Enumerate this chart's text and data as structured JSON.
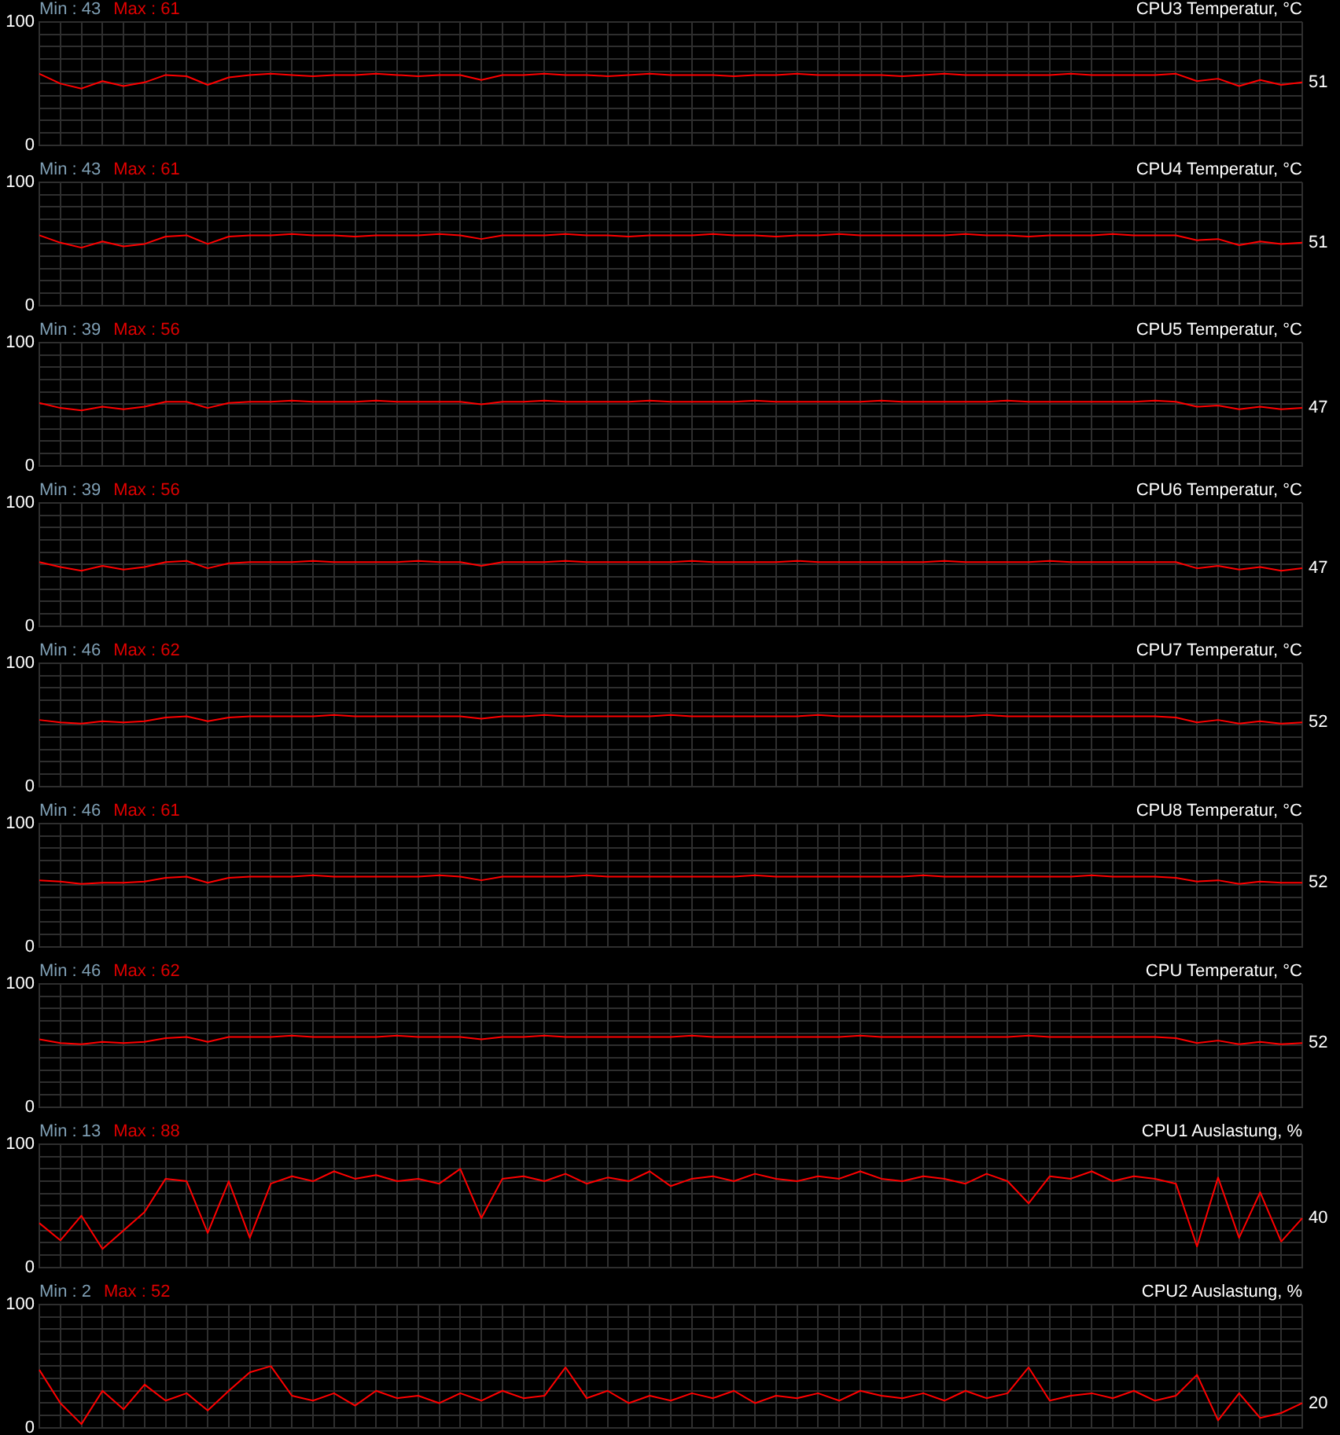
{
  "chart_data": [
    {
      "type": "line",
      "title": "CPU3 Temperatur, °C",
      "categories": [
        null,
        null,
        null,
        null,
        null,
        null,
        null,
        null,
        null,
        null,
        null,
        null,
        null,
        null,
        null,
        null,
        null,
        null,
        null,
        null,
        null,
        null,
        null,
        null,
        null,
        null,
        null,
        null,
        null,
        null,
        null,
        null,
        null,
        null,
        null,
        null,
        null,
        null,
        null,
        null,
        null,
        null,
        null,
        null,
        null,
        null,
        null,
        null,
        null,
        null,
        null,
        null,
        null,
        null,
        null,
        null,
        null,
        null,
        null,
        null,
        null
      ],
      "series": [
        {
          "color": "#ff0000",
          "values": [
            58,
            50,
            46,
            52,
            48,
            51,
            57,
            56,
            49,
            55,
            57,
            58,
            57,
            56,
            57,
            57,
            58,
            57,
            56,
            57,
            57,
            53,
            57,
            57,
            58,
            57,
            57,
            56,
            57,
            58,
            57,
            57,
            57,
            56,
            57,
            57,
            58,
            57,
            57,
            57,
            57,
            56,
            57,
            58,
            57,
            57,
            57,
            57,
            57,
            58,
            57,
            57,
            57,
            57,
            58,
            52,
            54,
            48,
            53,
            49,
            51
          ],
          "value_labels": [
            null,
            null,
            null,
            null,
            null,
            null,
            null,
            null,
            null,
            null,
            null,
            null,
            null,
            null,
            null,
            null,
            null,
            null,
            null,
            null,
            null,
            null,
            null,
            null,
            null,
            null,
            null,
            null,
            null,
            null,
            null,
            null,
            null,
            null,
            null,
            null,
            null,
            null,
            null,
            null,
            null,
            null,
            null,
            null,
            null,
            null,
            null,
            null,
            null,
            null,
            null,
            null,
            null,
            null,
            null,
            null,
            null,
            null,
            null,
            null,
            "51"
          ]
        }
      ],
      "ylim": [
        0,
        100
      ],
      "yticks": [
        {
          "value": 0,
          "label": "0"
        },
        {
          "value": 10,
          "label": null
        },
        {
          "value": 20,
          "label": null
        },
        {
          "value": 30,
          "label": null
        },
        {
          "value": 40,
          "label": null
        },
        {
          "value": 50,
          "label": null
        },
        {
          "value": 60,
          "label": null
        },
        {
          "value": 70,
          "label": null
        },
        {
          "value": 80,
          "label": null
        },
        {
          "value": 90,
          "label": null
        },
        {
          "value": 100,
          "label": "100"
        }
      ],
      "grid": true,
      "marker": "none",
      "tick_labels": "y",
      "annotations": [
        "Min : 43",
        "Max : 61"
      ]
    },
    {
      "type": "line",
      "title": "CPU4 Temperatur, °C",
      "categories": [
        null,
        null,
        null,
        null,
        null,
        null,
        null,
        null,
        null,
        null,
        null,
        null,
        null,
        null,
        null,
        null,
        null,
        null,
        null,
        null,
        null,
        null,
        null,
        null,
        null,
        null,
        null,
        null,
        null,
        null,
        null,
        null,
        null,
        null,
        null,
        null,
        null,
        null,
        null,
        null,
        null,
        null,
        null,
        null,
        null,
        null,
        null,
        null,
        null,
        null,
        null,
        null,
        null,
        null,
        null,
        null,
        null,
        null,
        null,
        null,
        null
      ],
      "series": [
        {
          "color": "#ff0000",
          "values": [
            57,
            51,
            47,
            52,
            48,
            50,
            56,
            57,
            50,
            56,
            57,
            57,
            58,
            57,
            57,
            56,
            57,
            57,
            57,
            58,
            57,
            54,
            57,
            57,
            57,
            58,
            57,
            57,
            56,
            57,
            57,
            57,
            58,
            57,
            57,
            56,
            57,
            57,
            58,
            57,
            57,
            57,
            57,
            57,
            58,
            57,
            57,
            56,
            57,
            57,
            57,
            58,
            57,
            57,
            57,
            53,
            54,
            49,
            52,
            50,
            51
          ],
          "value_labels": [
            null,
            null,
            null,
            null,
            null,
            null,
            null,
            null,
            null,
            null,
            null,
            null,
            null,
            null,
            null,
            null,
            null,
            null,
            null,
            null,
            null,
            null,
            null,
            null,
            null,
            null,
            null,
            null,
            null,
            null,
            null,
            null,
            null,
            null,
            null,
            null,
            null,
            null,
            null,
            null,
            null,
            null,
            null,
            null,
            null,
            null,
            null,
            null,
            null,
            null,
            null,
            null,
            null,
            null,
            null,
            null,
            null,
            null,
            null,
            null,
            "51"
          ]
        }
      ],
      "ylim": [
        0,
        100
      ],
      "yticks": [
        {
          "value": 0,
          "label": "0"
        },
        {
          "value": 10,
          "label": null
        },
        {
          "value": 20,
          "label": null
        },
        {
          "value": 30,
          "label": null
        },
        {
          "value": 40,
          "label": null
        },
        {
          "value": 50,
          "label": null
        },
        {
          "value": 60,
          "label": null
        },
        {
          "value": 70,
          "label": null
        },
        {
          "value": 80,
          "label": null
        },
        {
          "value": 90,
          "label": null
        },
        {
          "value": 100,
          "label": "100"
        }
      ],
      "grid": true,
      "marker": "none",
      "tick_labels": "y",
      "annotations": [
        "Min : 43",
        "Max : 61"
      ]
    },
    {
      "type": "line",
      "title": "CPU5 Temperatur, °C",
      "categories": [
        null,
        null,
        null,
        null,
        null,
        null,
        null,
        null,
        null,
        null,
        null,
        null,
        null,
        null,
        null,
        null,
        null,
        null,
        null,
        null,
        null,
        null,
        null,
        null,
        null,
        null,
        null,
        null,
        null,
        null,
        null,
        null,
        null,
        null,
        null,
        null,
        null,
        null,
        null,
        null,
        null,
        null,
        null,
        null,
        null,
        null,
        null,
        null,
        null,
        null,
        null,
        null,
        null,
        null,
        null,
        null,
        null,
        null,
        null,
        null,
        null
      ],
      "series": [
        {
          "color": "#ff0000",
          "values": [
            51,
            47,
            45,
            48,
            46,
            48,
            52,
            52,
            47,
            51,
            52,
            52,
            53,
            52,
            52,
            52,
            53,
            52,
            52,
            52,
            52,
            50,
            52,
            52,
            53,
            52,
            52,
            52,
            52,
            53,
            52,
            52,
            52,
            52,
            53,
            52,
            52,
            52,
            52,
            52,
            53,
            52,
            52,
            52,
            52,
            52,
            53,
            52,
            52,
            52,
            52,
            52,
            52,
            53,
            52,
            48,
            49,
            46,
            48,
            46,
            47
          ],
          "value_labels": [
            null,
            null,
            null,
            null,
            null,
            null,
            null,
            null,
            null,
            null,
            null,
            null,
            null,
            null,
            null,
            null,
            null,
            null,
            null,
            null,
            null,
            null,
            null,
            null,
            null,
            null,
            null,
            null,
            null,
            null,
            null,
            null,
            null,
            null,
            null,
            null,
            null,
            null,
            null,
            null,
            null,
            null,
            null,
            null,
            null,
            null,
            null,
            null,
            null,
            null,
            null,
            null,
            null,
            null,
            null,
            null,
            null,
            null,
            null,
            null,
            "47"
          ]
        }
      ],
      "ylim": [
        0,
        100
      ],
      "yticks": [
        {
          "value": 0,
          "label": "0"
        },
        {
          "value": 10,
          "label": null
        },
        {
          "value": 20,
          "label": null
        },
        {
          "value": 30,
          "label": null
        },
        {
          "value": 40,
          "label": null
        },
        {
          "value": 50,
          "label": null
        },
        {
          "value": 60,
          "label": null
        },
        {
          "value": 70,
          "label": null
        },
        {
          "value": 80,
          "label": null
        },
        {
          "value": 90,
          "label": null
        },
        {
          "value": 100,
          "label": "100"
        }
      ],
      "grid": true,
      "marker": "none",
      "tick_labels": "y",
      "annotations": [
        "Min : 39",
        "Max : 56"
      ]
    },
    {
      "type": "line",
      "title": "CPU6 Temperatur, °C",
      "categories": [
        null,
        null,
        null,
        null,
        null,
        null,
        null,
        null,
        null,
        null,
        null,
        null,
        null,
        null,
        null,
        null,
        null,
        null,
        null,
        null,
        null,
        null,
        null,
        null,
        null,
        null,
        null,
        null,
        null,
        null,
        null,
        null,
        null,
        null,
        null,
        null,
        null,
        null,
        null,
        null,
        null,
        null,
        null,
        null,
        null,
        null,
        null,
        null,
        null,
        null,
        null,
        null,
        null,
        null,
        null,
        null,
        null,
        null,
        null,
        null,
        null
      ],
      "series": [
        {
          "color": "#ff0000",
          "values": [
            52,
            48,
            45,
            49,
            46,
            48,
            52,
            53,
            47,
            51,
            52,
            52,
            52,
            53,
            52,
            52,
            52,
            52,
            53,
            52,
            52,
            49,
            52,
            52,
            52,
            53,
            52,
            52,
            52,
            52,
            52,
            53,
            52,
            52,
            52,
            52,
            53,
            52,
            52,
            52,
            52,
            52,
            52,
            53,
            52,
            52,
            52,
            52,
            53,
            52,
            52,
            52,
            52,
            52,
            52,
            47,
            49,
            46,
            48,
            45,
            47
          ],
          "value_labels": [
            null,
            null,
            null,
            null,
            null,
            null,
            null,
            null,
            null,
            null,
            null,
            null,
            null,
            null,
            null,
            null,
            null,
            null,
            null,
            null,
            null,
            null,
            null,
            null,
            null,
            null,
            null,
            null,
            null,
            null,
            null,
            null,
            null,
            null,
            null,
            null,
            null,
            null,
            null,
            null,
            null,
            null,
            null,
            null,
            null,
            null,
            null,
            null,
            null,
            null,
            null,
            null,
            null,
            null,
            null,
            null,
            null,
            null,
            null,
            null,
            "47"
          ]
        }
      ],
      "ylim": [
        0,
        100
      ],
      "yticks": [
        {
          "value": 0,
          "label": "0"
        },
        {
          "value": 10,
          "label": null
        },
        {
          "value": 20,
          "label": null
        },
        {
          "value": 30,
          "label": null
        },
        {
          "value": 40,
          "label": null
        },
        {
          "value": 50,
          "label": null
        },
        {
          "value": 60,
          "label": null
        },
        {
          "value": 70,
          "label": null
        },
        {
          "value": 80,
          "label": null
        },
        {
          "value": 90,
          "label": null
        },
        {
          "value": 100,
          "label": "100"
        }
      ],
      "grid": true,
      "marker": "none",
      "tick_labels": "y",
      "annotations": [
        "Min : 39",
        "Max : 56"
      ]
    },
    {
      "type": "line",
      "title": "CPU7 Temperatur, °C",
      "categories": [
        null,
        null,
        null,
        null,
        null,
        null,
        null,
        null,
        null,
        null,
        null,
        null,
        null,
        null,
        null,
        null,
        null,
        null,
        null,
        null,
        null,
        null,
        null,
        null,
        null,
        null,
        null,
        null,
        null,
        null,
        null,
        null,
        null,
        null,
        null,
        null,
        null,
        null,
        null,
        null,
        null,
        null,
        null,
        null,
        null,
        null,
        null,
        null,
        null,
        null,
        null,
        null,
        null,
        null,
        null,
        null,
        null,
        null,
        null,
        null,
        null
      ],
      "series": [
        {
          "color": "#ff0000",
          "values": [
            54,
            52,
            51,
            53,
            52,
            53,
            56,
            57,
            53,
            56,
            57,
            57,
            57,
            57,
            58,
            57,
            57,
            57,
            57,
            57,
            57,
            55,
            57,
            57,
            58,
            57,
            57,
            57,
            57,
            57,
            58,
            57,
            57,
            57,
            57,
            57,
            57,
            58,
            57,
            57,
            57,
            57,
            57,
            57,
            57,
            58,
            57,
            57,
            57,
            57,
            57,
            57,
            57,
            57,
            56,
            52,
            54,
            51,
            53,
            51,
            52
          ],
          "value_labels": [
            null,
            null,
            null,
            null,
            null,
            null,
            null,
            null,
            null,
            null,
            null,
            null,
            null,
            null,
            null,
            null,
            null,
            null,
            null,
            null,
            null,
            null,
            null,
            null,
            null,
            null,
            null,
            null,
            null,
            null,
            null,
            null,
            null,
            null,
            null,
            null,
            null,
            null,
            null,
            null,
            null,
            null,
            null,
            null,
            null,
            null,
            null,
            null,
            null,
            null,
            null,
            null,
            null,
            null,
            null,
            null,
            null,
            null,
            null,
            null,
            "52"
          ]
        }
      ],
      "ylim": [
        0,
        100
      ],
      "yticks": [
        {
          "value": 0,
          "label": "0"
        },
        {
          "value": 10,
          "label": null
        },
        {
          "value": 20,
          "label": null
        },
        {
          "value": 30,
          "label": null
        },
        {
          "value": 40,
          "label": null
        },
        {
          "value": 50,
          "label": null
        },
        {
          "value": 60,
          "label": null
        },
        {
          "value": 70,
          "label": null
        },
        {
          "value": 80,
          "label": null
        },
        {
          "value": 90,
          "label": null
        },
        {
          "value": 100,
          "label": "100"
        }
      ],
      "grid": true,
      "marker": "none",
      "tick_labels": "y",
      "annotations": [
        "Min : 46",
        "Max : 62"
      ]
    },
    {
      "type": "line",
      "title": "CPU8 Temperatur, °C",
      "categories": [
        null,
        null,
        null,
        null,
        null,
        null,
        null,
        null,
        null,
        null,
        null,
        null,
        null,
        null,
        null,
        null,
        null,
        null,
        null,
        null,
        null,
        null,
        null,
        null,
        null,
        null,
        null,
        null,
        null,
        null,
        null,
        null,
        null,
        null,
        null,
        null,
        null,
        null,
        null,
        null,
        null,
        null,
        null,
        null,
        null,
        null,
        null,
        null,
        null,
        null,
        null,
        null,
        null,
        null,
        null,
        null,
        null,
        null,
        null,
        null,
        null
      ],
      "series": [
        {
          "color": "#ff0000",
          "values": [
            54,
            53,
            51,
            52,
            52,
            53,
            56,
            57,
            52,
            56,
            57,
            57,
            57,
            58,
            57,
            57,
            57,
            57,
            57,
            58,
            57,
            54,
            57,
            57,
            57,
            57,
            58,
            57,
            57,
            57,
            57,
            57,
            57,
            57,
            58,
            57,
            57,
            57,
            57,
            57,
            57,
            57,
            58,
            57,
            57,
            57,
            57,
            57,
            57,
            57,
            58,
            57,
            57,
            57,
            56,
            53,
            54,
            51,
            53,
            52,
            52
          ],
          "value_labels": [
            null,
            null,
            null,
            null,
            null,
            null,
            null,
            null,
            null,
            null,
            null,
            null,
            null,
            null,
            null,
            null,
            null,
            null,
            null,
            null,
            null,
            null,
            null,
            null,
            null,
            null,
            null,
            null,
            null,
            null,
            null,
            null,
            null,
            null,
            null,
            null,
            null,
            null,
            null,
            null,
            null,
            null,
            null,
            null,
            null,
            null,
            null,
            null,
            null,
            null,
            null,
            null,
            null,
            null,
            null,
            null,
            null,
            null,
            null,
            null,
            "52"
          ]
        }
      ],
      "ylim": [
        0,
        100
      ],
      "yticks": [
        {
          "value": 0,
          "label": "0"
        },
        {
          "value": 10,
          "label": null
        },
        {
          "value": 20,
          "label": null
        },
        {
          "value": 30,
          "label": null
        },
        {
          "value": 40,
          "label": null
        },
        {
          "value": 50,
          "label": null
        },
        {
          "value": 60,
          "label": null
        },
        {
          "value": 70,
          "label": null
        },
        {
          "value": 80,
          "label": null
        },
        {
          "value": 90,
          "label": null
        },
        {
          "value": 100,
          "label": "100"
        }
      ],
      "grid": true,
      "marker": "none",
      "tick_labels": "y",
      "annotations": [
        "Min : 46",
        "Max : 61"
      ]
    },
    {
      "type": "line",
      "title": "CPU Temperatur, °C",
      "categories": [
        null,
        null,
        null,
        null,
        null,
        null,
        null,
        null,
        null,
        null,
        null,
        null,
        null,
        null,
        null,
        null,
        null,
        null,
        null,
        null,
        null,
        null,
        null,
        null,
        null,
        null,
        null,
        null,
        null,
        null,
        null,
        null,
        null,
        null,
        null,
        null,
        null,
        null,
        null,
        null,
        null,
        null,
        null,
        null,
        null,
        null,
        null,
        null,
        null,
        null,
        null,
        null,
        null,
        null,
        null,
        null,
        null,
        null,
        null,
        null,
        null
      ],
      "series": [
        {
          "color": "#ff0000",
          "values": [
            55,
            52,
            51,
            53,
            52,
            53,
            56,
            57,
            53,
            57,
            57,
            57,
            58,
            57,
            57,
            57,
            57,
            58,
            57,
            57,
            57,
            55,
            57,
            57,
            58,
            57,
            57,
            57,
            57,
            57,
            57,
            58,
            57,
            57,
            57,
            57,
            57,
            57,
            57,
            58,
            57,
            57,
            57,
            57,
            57,
            57,
            57,
            58,
            57,
            57,
            57,
            57,
            57,
            57,
            56,
            52,
            54,
            51,
            53,
            51,
            52
          ],
          "value_labels": [
            null,
            null,
            null,
            null,
            null,
            null,
            null,
            null,
            null,
            null,
            null,
            null,
            null,
            null,
            null,
            null,
            null,
            null,
            null,
            null,
            null,
            null,
            null,
            null,
            null,
            null,
            null,
            null,
            null,
            null,
            null,
            null,
            null,
            null,
            null,
            null,
            null,
            null,
            null,
            null,
            null,
            null,
            null,
            null,
            null,
            null,
            null,
            null,
            null,
            null,
            null,
            null,
            null,
            null,
            null,
            null,
            null,
            null,
            null,
            null,
            "52"
          ]
        }
      ],
      "ylim": [
        0,
        100
      ],
      "yticks": [
        {
          "value": 0,
          "label": "0"
        },
        {
          "value": 10,
          "label": null
        },
        {
          "value": 20,
          "label": null
        },
        {
          "value": 30,
          "label": null
        },
        {
          "value": 40,
          "label": null
        },
        {
          "value": 50,
          "label": null
        },
        {
          "value": 60,
          "label": null
        },
        {
          "value": 70,
          "label": null
        },
        {
          "value": 80,
          "label": null
        },
        {
          "value": 90,
          "label": null
        },
        {
          "value": 100,
          "label": "100"
        }
      ],
      "grid": true,
      "marker": "none",
      "tick_labels": "y",
      "annotations": [
        "Min : 46",
        "Max : 62"
      ]
    },
    {
      "type": "line",
      "title": "CPU1 Auslastung, %",
      "categories": [
        null,
        null,
        null,
        null,
        null,
        null,
        null,
        null,
        null,
        null,
        null,
        null,
        null,
        null,
        null,
        null,
        null,
        null,
        null,
        null,
        null,
        null,
        null,
        null,
        null,
        null,
        null,
        null,
        null,
        null,
        null,
        null,
        null,
        null,
        null,
        null,
        null,
        null,
        null,
        null,
        null,
        null,
        null,
        null,
        null,
        null,
        null,
        null,
        null,
        null,
        null,
        null,
        null,
        null,
        null,
        null,
        null,
        null,
        null,
        null,
        null
      ],
      "series": [
        {
          "color": "#ff0000",
          "values": [
            36,
            22,
            42,
            15,
            30,
            45,
            72,
            70,
            28,
            70,
            24,
            68,
            74,
            70,
            78,
            72,
            75,
            70,
            72,
            68,
            80,
            40,
            72,
            74,
            70,
            76,
            68,
            73,
            70,
            78,
            66,
            72,
            74,
            70,
            76,
            72,
            70,
            74,
            72,
            78,
            72,
            70,
            74,
            72,
            68,
            76,
            70,
            52,
            74,
            72,
            78,
            70,
            74,
            72,
            68,
            17,
            73,
            24,
            61,
            21,
            40
          ],
          "value_labels": [
            null,
            null,
            null,
            null,
            null,
            null,
            null,
            null,
            null,
            null,
            null,
            null,
            null,
            null,
            null,
            null,
            null,
            null,
            null,
            null,
            null,
            null,
            null,
            null,
            null,
            null,
            null,
            null,
            null,
            null,
            null,
            null,
            null,
            null,
            null,
            null,
            null,
            null,
            null,
            null,
            null,
            null,
            null,
            null,
            null,
            null,
            null,
            null,
            null,
            null,
            null,
            null,
            null,
            null,
            null,
            null,
            null,
            null,
            null,
            null,
            "40"
          ]
        }
      ],
      "ylim": [
        0,
        100
      ],
      "yticks": [
        {
          "value": 0,
          "label": "0"
        },
        {
          "value": 10,
          "label": null
        },
        {
          "value": 20,
          "label": null
        },
        {
          "value": 30,
          "label": null
        },
        {
          "value": 40,
          "label": null
        },
        {
          "value": 50,
          "label": null
        },
        {
          "value": 60,
          "label": null
        },
        {
          "value": 70,
          "label": null
        },
        {
          "value": 80,
          "label": null
        },
        {
          "value": 90,
          "label": null
        },
        {
          "value": 100,
          "label": "100"
        }
      ],
      "grid": true,
      "marker": "none",
      "tick_labels": "y",
      "annotations": [
        "Min : 13",
        "Max : 88"
      ]
    },
    {
      "type": "line",
      "title": "CPU2 Auslastung, %",
      "categories": [
        null,
        null,
        null,
        null,
        null,
        null,
        null,
        null,
        null,
        null,
        null,
        null,
        null,
        null,
        null,
        null,
        null,
        null,
        null,
        null,
        null,
        null,
        null,
        null,
        null,
        null,
        null,
        null,
        null,
        null,
        null,
        null,
        null,
        null,
        null,
        null,
        null,
        null,
        null,
        null,
        null,
        null,
        null,
        null,
        null,
        null,
        null,
        null,
        null,
        null,
        null,
        null,
        null,
        null,
        null,
        null,
        null,
        null,
        null,
        null,
        null
      ],
      "series": [
        {
          "color": "#ff0000",
          "values": [
            47,
            20,
            3,
            30,
            15,
            35,
            22,
            28,
            14,
            30,
            45,
            50,
            26,
            22,
            28,
            18,
            30,
            24,
            26,
            20,
            28,
            22,
            30,
            24,
            26,
            49,
            24,
            30,
            20,
            26,
            22,
            28,
            24,
            30,
            20,
            26,
            24,
            28,
            22,
            30,
            26,
            24,
            28,
            22,
            30,
            24,
            28,
            49,
            22,
            26,
            28,
            24,
            30,
            22,
            26,
            43,
            6,
            28,
            8,
            12,
            20
          ],
          "value_labels": [
            null,
            null,
            null,
            null,
            null,
            null,
            null,
            null,
            null,
            null,
            null,
            null,
            null,
            null,
            null,
            null,
            null,
            null,
            null,
            null,
            null,
            null,
            null,
            null,
            null,
            null,
            null,
            null,
            null,
            null,
            null,
            null,
            null,
            null,
            null,
            null,
            null,
            null,
            null,
            null,
            null,
            null,
            null,
            null,
            null,
            null,
            null,
            null,
            null,
            null,
            null,
            null,
            null,
            null,
            null,
            null,
            null,
            null,
            null,
            null,
            "20"
          ]
        }
      ],
      "ylim": [
        0,
        100
      ],
      "yticks": [
        {
          "value": 0,
          "label": "0"
        },
        {
          "value": 10,
          "label": null
        },
        {
          "value": 20,
          "label": null
        },
        {
          "value": 30,
          "label": null
        },
        {
          "value": 40,
          "label": null
        },
        {
          "value": 50,
          "label": null
        },
        {
          "value": 60,
          "label": null
        },
        {
          "value": 70,
          "label": null
        },
        {
          "value": 80,
          "label": null
        },
        {
          "value": 90,
          "label": null
        },
        {
          "value": 100,
          "label": "100"
        }
      ],
      "grid": true,
      "marker": "none",
      "tick_labels": "y",
      "annotations": [
        "Min : 2",
        "Max : 52"
      ]
    }
  ]
}
